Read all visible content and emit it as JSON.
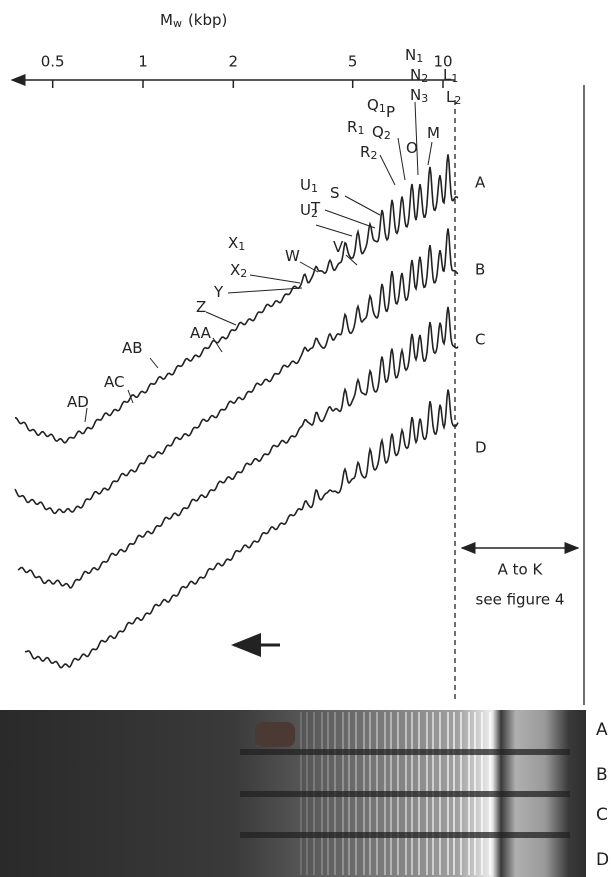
{
  "x_axis": {
    "title_main": "M",
    "title_sub": "w",
    "title_unit": "(kbp)",
    "ticks": [
      0.5,
      1,
      2,
      5,
      10
    ],
    "log_scale": true
  },
  "peak_labels": [
    {
      "text": "N",
      "sub": "1"
    },
    {
      "text": "N",
      "sub": "2"
    },
    {
      "text": "N",
      "sub": "3"
    },
    {
      "text": "L",
      "sub": "1"
    },
    {
      "text": "L",
      "sub": "2"
    },
    {
      "text": "Q",
      "sub": "1"
    },
    {
      "text": "P"
    },
    {
      "text": "Q",
      "sub": "2"
    },
    {
      "text": "R",
      "sub": "1"
    },
    {
      "text": "R",
      "sub": "2"
    },
    {
      "text": "O"
    },
    {
      "text": "M"
    },
    {
      "text": "S"
    },
    {
      "text": "T"
    },
    {
      "text": "U",
      "sub": "1"
    },
    {
      "text": "U",
      "sub": "2"
    },
    {
      "text": "V"
    },
    {
      "text": "W"
    },
    {
      "text": "X",
      "sub": "1"
    },
    {
      "text": "X",
      "sub": "2"
    },
    {
      "text": "Y"
    },
    {
      "text": "Z"
    },
    {
      "text": "AA"
    },
    {
      "text": "AB"
    },
    {
      "text": "AC"
    },
    {
      "text": "AD"
    }
  ],
  "traces": [
    "A",
    "B",
    "C",
    "D"
  ],
  "annotation": {
    "line1": "A to K",
    "line2": "see figure 4"
  },
  "gel_lanes": [
    "A",
    "B",
    "C",
    "D"
  ]
}
